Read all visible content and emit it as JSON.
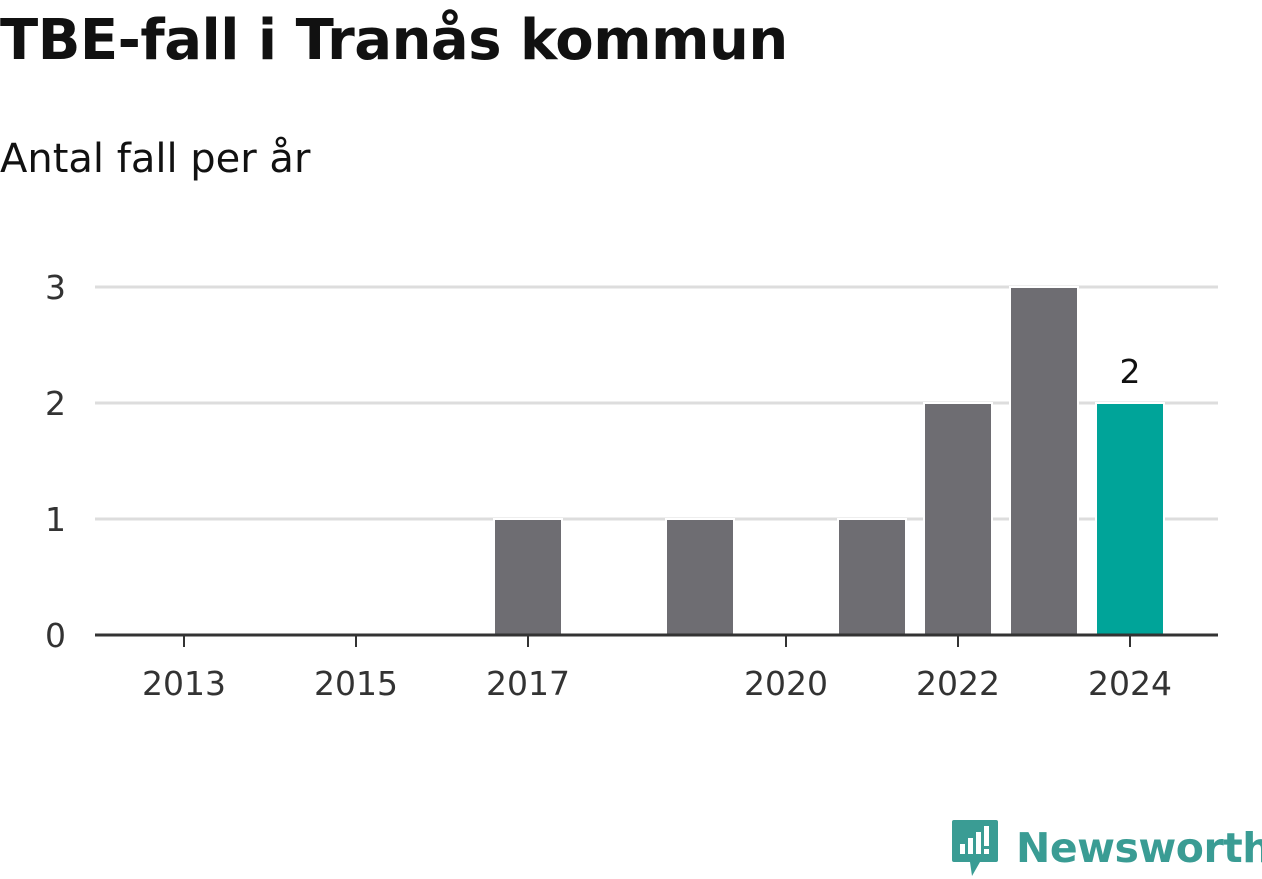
{
  "title": "TBE-fall i Tranås kommun",
  "subtitle": "Antal fall per år",
  "brand": {
    "name": "Newsworthy",
    "color": "#3a9c94",
    "icon": "newsworthy-logo-icon"
  },
  "colors": {
    "bar": "#6e6d72",
    "highlight": "#00a499",
    "grid": "#dddddd",
    "axis": "#333333"
  },
  "chart_data": {
    "type": "bar",
    "categories": [
      "2013",
      "2014",
      "2015",
      "2016",
      "2017",
      "2018",
      "2019",
      "2020",
      "2021",
      "2022",
      "2023",
      "2024"
    ],
    "values": [
      0,
      0,
      0,
      0,
      1,
      0,
      1,
      0,
      1,
      2,
      3,
      2
    ],
    "x_tick_labels": [
      "2013",
      "2015",
      "2017",
      "2020",
      "2022",
      "2024"
    ],
    "y_ticks": [
      0,
      1,
      2,
      3
    ],
    "ylim": [
      0,
      3
    ],
    "highlight_category": "2024",
    "data_labels": [
      {
        "category": "2024",
        "text": "2"
      }
    ],
    "grid": true,
    "title": "TBE-fall i Tranås kommun",
    "subtitle": "Antal fall per år",
    "xlabel": "",
    "ylabel": ""
  }
}
